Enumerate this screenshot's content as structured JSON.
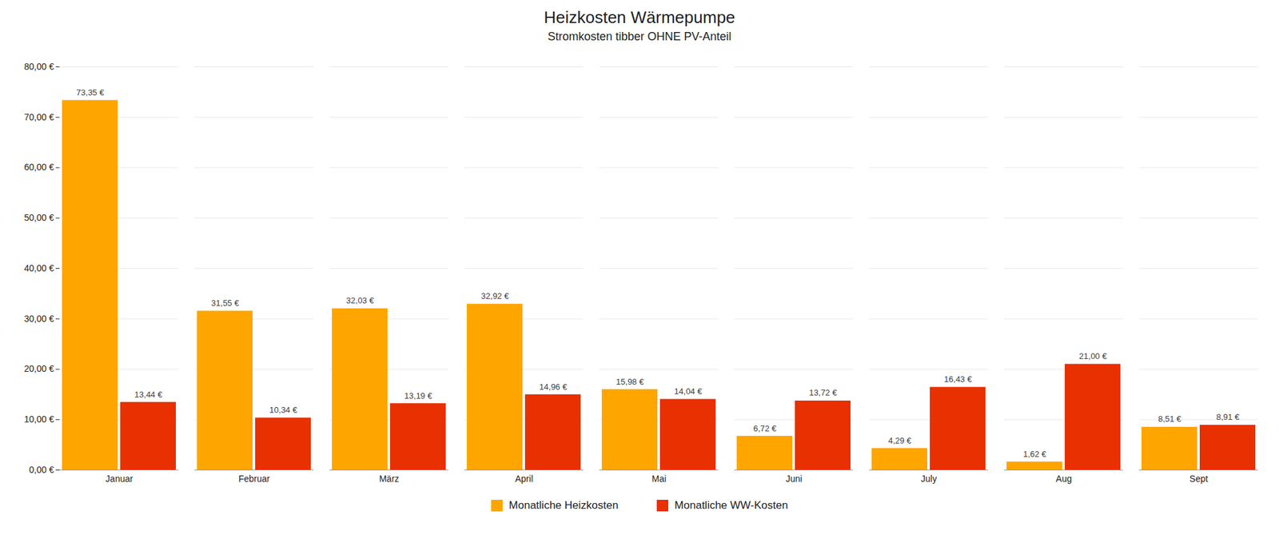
{
  "chart_data": {
    "type": "bar",
    "title": "Heizkosten Wärmepumpe",
    "subtitle": "Stromkosten tibber OHNE PV-Anteil",
    "categories": [
      "Januar",
      "Februar",
      "März",
      "April",
      "Mai",
      "Juni",
      "July",
      "Aug",
      "Sept"
    ],
    "series": [
      {
        "name": "Monatliche Heizkosten",
        "color": "#FFA500",
        "values": [
          73.35,
          31.55,
          32.03,
          32.92,
          15.98,
          6.72,
          4.29,
          1.62,
          8.51
        ],
        "value_labels": [
          "73,35 €",
          "31,55 €",
          "32,03 €",
          "32,92 €",
          "15,98 €",
          "6,72 €",
          "4,29 €",
          "1,62 €",
          "8,51 €"
        ]
      },
      {
        "name": "Monatliche WW-Kosten",
        "color": "#E83000",
        "values": [
          13.44,
          10.34,
          13.19,
          14.96,
          14.04,
          13.72,
          16.43,
          21.0,
          8.91
        ],
        "value_labels": [
          "13,44 €",
          "10,34 €",
          "13,19 €",
          "14,96 €",
          "14,04 €",
          "13,72 €",
          "16,43 €",
          "21,00 €",
          "8,91 €"
        ]
      }
    ],
    "ylim": [
      0,
      80
    ],
    "yticks": [
      {
        "value": 0,
        "label": "0,00 €"
      },
      {
        "value": 10,
        "label": "10,00 €"
      },
      {
        "value": 20,
        "label": "20,00 €"
      },
      {
        "value": 30,
        "label": "30,00 €"
      },
      {
        "value": 40,
        "label": "40,00 €"
      },
      {
        "value": 50,
        "label": "50,00 €"
      },
      {
        "value": 60,
        "label": "60,00 €"
      },
      {
        "value": 70,
        "label": "70,00 €"
      },
      {
        "value": 80,
        "label": "80,00 €"
      }
    ],
    "grid": true,
    "legend": "bottom",
    "data_labels": true
  }
}
